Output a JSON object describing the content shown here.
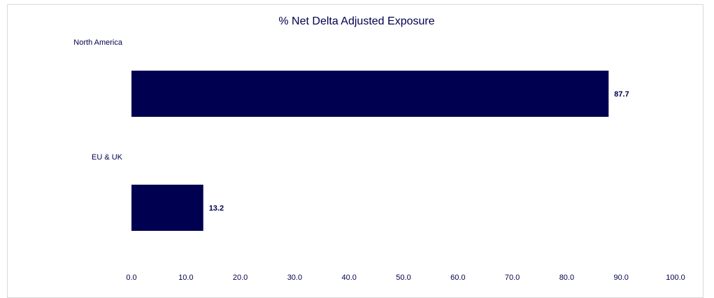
{
  "chart_data": {
    "type": "bar",
    "orientation": "horizontal",
    "title": "% Net Delta Adjusted Exposure",
    "categories": [
      "North America",
      "EU & UK"
    ],
    "values": [
      87.7,
      13.2
    ],
    "value_labels": [
      "87.7",
      "13.2"
    ],
    "xlim": [
      0,
      100
    ],
    "x_ticks": [
      "0.0",
      "10.0",
      "20.0",
      "30.0",
      "40.0",
      "50.0",
      "60.0",
      "70.0",
      "80.0",
      "90.0",
      "100.0"
    ],
    "grid": false,
    "legend": "none",
    "bar_color": "#000050",
    "text_color": "#00004d"
  }
}
